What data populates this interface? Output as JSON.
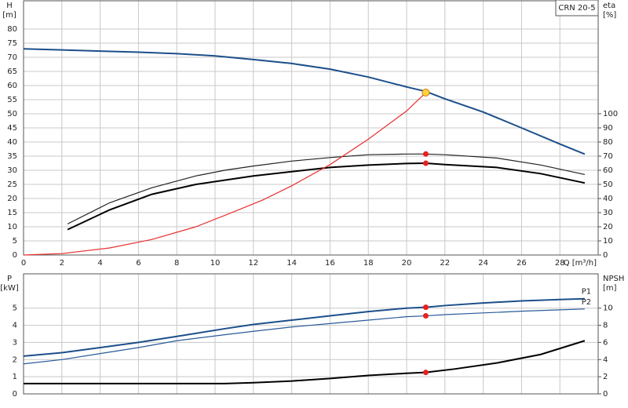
{
  "chart_data": [
    {
      "type": "line",
      "title": "CRN 20-5",
      "xlabel": "Q [m³/h]",
      "ylabel": "H",
      "yunit": "[m]",
      "y2label": "eta",
      "y2unit": "[%]",
      "xlim": [
        0,
        30
      ],
      "xticks": [
        0,
        2,
        4,
        6,
        8,
        10,
        12,
        14,
        16,
        18,
        20,
        22,
        24,
        26,
        28
      ],
      "ylim": [
        0,
        90
      ],
      "yticks": [
        0,
        5,
        10,
        15,
        20,
        25,
        30,
        35,
        40,
        45,
        50,
        55,
        60,
        65,
        70,
        75,
        80
      ],
      "y2lim": [
        0,
        180
      ],
      "y2ticks": [
        0,
        10,
        20,
        30,
        40,
        50,
        60,
        70,
        80,
        90,
        100
      ],
      "grid": true,
      "series": [
        {
          "color": "#1c4f8a",
          "x": [
            0,
            2,
            4,
            6,
            8,
            10,
            12,
            14,
            16,
            18,
            20,
            21,
            22,
            24,
            26,
            28,
            29.3
          ],
          "values": [
            73,
            72.6,
            72.2,
            71.8,
            71.3,
            70.5,
            69.2,
            67.8,
            65.8,
            63,
            59.5,
            57.9,
            55.3,
            50.6,
            45,
            39.3,
            35.7
          ]
        },
        {
          "color": "#222222",
          "axis": "y2",
          "x": [
            2.3,
            4.5,
            6.7,
            9,
            10.5,
            12,
            14,
            16,
            18,
            20,
            21,
            22,
            24.7,
            27,
            29.3
          ],
          "values": [
            22,
            37,
            47.6,
            56,
            60,
            63,
            66.5,
            69,
            71,
            71.5,
            71.5,
            71,
            68.7,
            63.7,
            57
          ]
        },
        {
          "color": "#000000",
          "axis": "y2",
          "x": [
            2.3,
            4.5,
            6.7,
            9,
            10.5,
            12,
            14,
            16,
            18,
            20,
            21,
            22,
            24.7,
            27,
            29.3
          ],
          "values": [
            18,
            32,
            43,
            50,
            53,
            56,
            59,
            62,
            63.7,
            64.8,
            65,
            64,
            62,
            57.6,
            51
          ]
        },
        {
          "color": "#e83030",
          "x": [
            0,
            2,
            4.5,
            6.7,
            9,
            10.5,
            12.5,
            14,
            16,
            18,
            20,
            21
          ],
          "values": [
            0,
            0.5,
            2.5,
            5.5,
            10,
            14,
            19.5,
            24.5,
            32,
            41,
            51,
            57.5
          ]
        }
      ],
      "points": [
        {
          "x": 21,
          "y": 57.5,
          "color": "#ffd23f"
        },
        {
          "x": 21,
          "y": 71.5,
          "axis": "y2",
          "color": "#e82020"
        },
        {
          "x": 21,
          "y": 65,
          "axis": "y2",
          "color": "#e82020"
        }
      ]
    },
    {
      "type": "line",
      "ylabel": "P",
      "yunit": "[kW]",
      "y2label": "NPSH",
      "y2unit": "[m]",
      "xlim": [
        0,
        30
      ],
      "xticks": [
        0,
        2,
        4,
        6,
        8,
        10,
        12,
        14,
        16,
        18,
        20,
        22,
        24,
        26,
        28
      ],
      "ylim": [
        0,
        7
      ],
      "yticks": [
        0,
        1,
        2,
        3,
        4,
        5
      ],
      "y2lim": [
        0,
        14
      ],
      "y2ticks": [
        0,
        2,
        4,
        6,
        8,
        10
      ],
      "grid": true,
      "series": [
        {
          "name": "P1",
          "color": "#1c4f8a",
          "x": [
            0,
            2,
            4,
            6,
            8,
            10.5,
            12,
            14,
            16,
            18,
            20,
            21,
            22,
            24,
            26,
            28,
            29.3
          ],
          "values": [
            2.2,
            2.4,
            2.7,
            3.0,
            3.35,
            3.8,
            4.05,
            4.3,
            4.55,
            4.8,
            5.0,
            5.05,
            5.15,
            5.3,
            5.42,
            5.5,
            5.55
          ]
        },
        {
          "name": "P2",
          "color": "#2a5a9a",
          "x": [
            0,
            2,
            4,
            6,
            8,
            10.5,
            12,
            14,
            16,
            18,
            20,
            21,
            22,
            24,
            26,
            28,
            29.3
          ],
          "values": [
            1.75,
            2.0,
            2.35,
            2.7,
            3.1,
            3.45,
            3.65,
            3.9,
            4.1,
            4.3,
            4.5,
            4.55,
            4.62,
            4.72,
            4.82,
            4.9,
            4.95
          ]
        },
        {
          "color": "#000000",
          "axis": "y2",
          "x": [
            0,
            5,
            10.5,
            12,
            14,
            16,
            18,
            20,
            21,
            22.5,
            24.7,
            27,
            29.3
          ],
          "values": [
            1.2,
            1.2,
            1.2,
            1.3,
            1.5,
            1.8,
            2.15,
            2.4,
            2.5,
            2.9,
            3.6,
            4.6,
            6.2
          ]
        }
      ],
      "points": [
        {
          "x": 21,
          "y": 5.05,
          "color": "#e82020"
        },
        {
          "x": 21,
          "y": 4.55,
          "color": "#e82020"
        },
        {
          "x": 21,
          "y": 2.5,
          "axis": "y2",
          "color": "#e82020"
        }
      ]
    }
  ]
}
